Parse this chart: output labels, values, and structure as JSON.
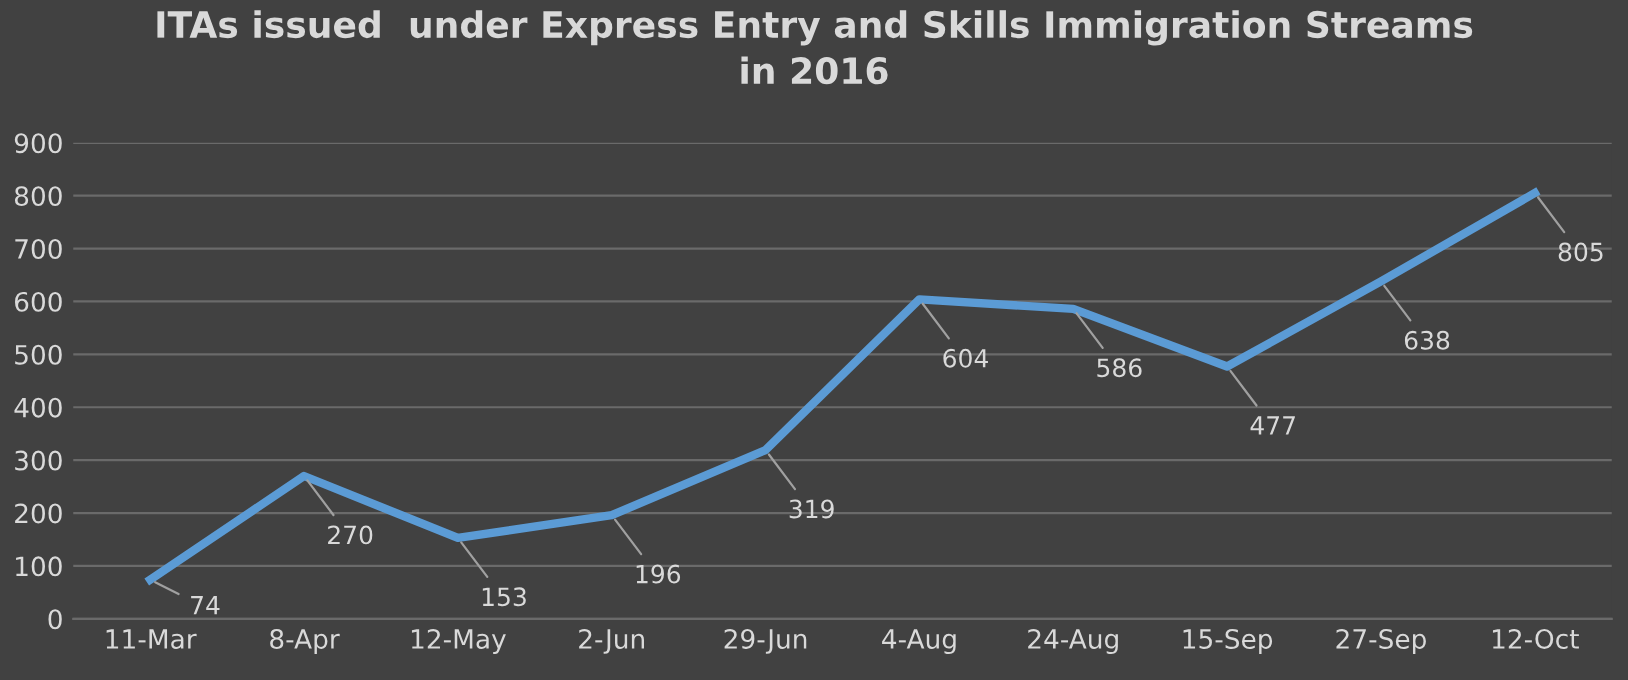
{
  "chart_data": {
    "type": "line",
    "title": "ITAs issued  under Express Entry and Skills Immigration Streams\nin 2016",
    "categories": [
      "11-Mar",
      "8-Apr",
      "12-May",
      "2-Jun",
      "29-Jun",
      "4-Aug",
      "24-Aug",
      "15-Sep",
      "27-Sep",
      "12-Oct"
    ],
    "series": [
      {
        "color": "#5b9bd5",
        "values": [
          74,
          270,
          153,
          196,
          319,
          604,
          586,
          477,
          638,
          805
        ]
      }
    ],
    "ylim": [
      0,
      900
    ],
    "yticks": [
      0,
      100,
      200,
      300,
      400,
      500,
      600,
      700,
      800,
      900
    ],
    "grid": "y",
    "data_labels": true,
    "marker": "none",
    "line_style": "solid"
  }
}
